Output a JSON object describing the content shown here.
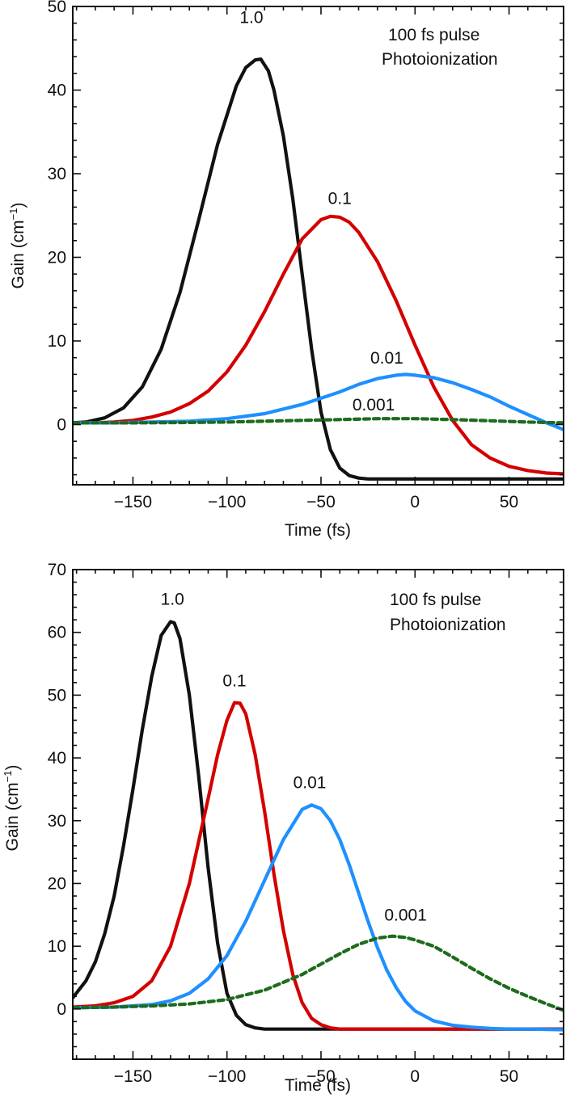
{
  "chart_data": [
    {
      "type": "line",
      "xlabel": "Time (fs)",
      "ylabel": "Gain (cm",
      "ylabel_sup": "−1",
      "ylabel_close": ")",
      "xlim": [
        -182,
        79
      ],
      "ylim": [
        -7.2,
        50
      ],
      "x_major_ticks": [
        -150,
        -100,
        -50,
        0,
        50
      ],
      "x_tick_labels": [
        "−150",
        "−100",
        "−50",
        "0",
        "50"
      ],
      "y_major_ticks": [
        0,
        10,
        20,
        30,
        40,
        50
      ],
      "y_tick_labels": [
        "0",
        "10",
        "20",
        "30",
        "40",
        "50"
      ],
      "annotations": [
        "100 fs pulse",
        "Photoionization"
      ],
      "grid": false,
      "legend": "none",
      "series": [
        {
          "label": "1.0",
          "color": "#111111",
          "dash": "solid",
          "x": [
            -182,
            -175,
            -165,
            -155,
            -145,
            -135,
            -125,
            -115,
            -105,
            -95,
            -90,
            -85,
            -82,
            -78,
            -75,
            -70,
            -65,
            -60,
            -55,
            -50,
            -45,
            -40,
            -35,
            -30,
            -25,
            -20,
            -10,
            0,
            20,
            50,
            79
          ],
          "y": [
            0.2,
            0.3,
            0.8,
            2.0,
            4.5,
            9.0,
            15.8,
            24.5,
            33.5,
            40.5,
            42.7,
            43.6,
            43.7,
            42.3,
            40.0,
            34.5,
            27.0,
            18.0,
            9.0,
            1.5,
            -3.0,
            -5.2,
            -6.1,
            -6.4,
            -6.5,
            -6.5,
            -6.5,
            -6.5,
            -6.5,
            -6.5,
            -6.5
          ]
        },
        {
          "label": "0.1",
          "color": "#d40000",
          "dash": "solid",
          "x": [
            -182,
            -170,
            -160,
            -150,
            -140,
            -130,
            -120,
            -110,
            -100,
            -90,
            -80,
            -70,
            -60,
            -50,
            -45,
            -40,
            -35,
            -30,
            -20,
            -10,
            0,
            10,
            20,
            30,
            40,
            50,
            60,
            70,
            79
          ],
          "y": [
            0.2,
            0.2,
            0.3,
            0.5,
            0.9,
            1.5,
            2.5,
            4.0,
            6.3,
            9.5,
            13.5,
            18.0,
            22.2,
            24.5,
            24.9,
            24.8,
            24.2,
            23.0,
            19.5,
            14.8,
            9.5,
            4.5,
            0.5,
            -2.4,
            -4.0,
            -5.0,
            -5.5,
            -5.8,
            -5.9
          ]
        },
        {
          "label": "0.01",
          "color": "#1e90ff",
          "dash": "solid",
          "x": [
            -182,
            -160,
            -140,
            -120,
            -100,
            -80,
            -60,
            -40,
            -30,
            -20,
            -10,
            -5,
            0,
            10,
            20,
            30,
            40,
            50,
            60,
            70,
            79
          ],
          "y": [
            0.2,
            0.2,
            0.3,
            0.4,
            0.7,
            1.3,
            2.4,
            3.9,
            4.8,
            5.5,
            5.9,
            6.0,
            5.9,
            5.6,
            5.0,
            4.2,
            3.3,
            2.2,
            1.2,
            0.2,
            -0.6
          ]
        },
        {
          "label": "0.001",
          "color": "#1e6b1e",
          "dash": "dashed",
          "x": [
            -182,
            -150,
            -120,
            -100,
            -80,
            -60,
            -40,
            -20,
            0,
            20,
            40,
            60,
            79
          ],
          "y": [
            0.2,
            0.2,
            0.25,
            0.3,
            0.4,
            0.5,
            0.6,
            0.7,
            0.7,
            0.6,
            0.45,
            0.3,
            0.2
          ]
        }
      ]
    },
    {
      "type": "line",
      "xlabel": "Time (fs)",
      "ylabel": "Gain (cm",
      "ylabel_sup": "−1",
      "ylabel_close": ")",
      "xlim": [
        -182,
        79
      ],
      "ylim": [
        -8,
        70
      ],
      "x_major_ticks": [
        -150,
        -100,
        -50,
        0,
        50
      ],
      "x_tick_labels": [
        "−150",
        "−100",
        "−50",
        "0",
        "50"
      ],
      "y_major_ticks": [
        0,
        10,
        20,
        30,
        40,
        50,
        60,
        70
      ],
      "y_tick_labels": [
        "0",
        "10",
        "20",
        "30",
        "40",
        "50",
        "60",
        "70"
      ],
      "annotations": [
        "100 fs pulse",
        "Photoionization"
      ],
      "grid": false,
      "legend": "none",
      "series": [
        {
          "label": "1.0",
          "color": "#111111",
          "dash": "solid",
          "x": [
            -182,
            -175,
            -170,
            -165,
            -160,
            -155,
            -150,
            -145,
            -140,
            -135,
            -130,
            -128,
            -125,
            -120,
            -115,
            -110,
            -105,
            -100,
            -95,
            -90,
            -85,
            -80,
            -70,
            -50,
            0,
            79
          ],
          "y": [
            1.8,
            4.5,
            7.5,
            12.0,
            18.0,
            26.0,
            35.0,
            44.5,
            53.0,
            59.5,
            61.7,
            61.5,
            59.0,
            50.0,
            37.0,
            22.5,
            10.5,
            2.5,
            -1.0,
            -2.5,
            -3.0,
            -3.2,
            -3.2,
            -3.2,
            -3.2,
            -3.2
          ]
        },
        {
          "label": "0.1",
          "color": "#d40000",
          "dash": "solid",
          "x": [
            -182,
            -170,
            -160,
            -150,
            -140,
            -130,
            -120,
            -110,
            -105,
            -100,
            -96,
            -93,
            -90,
            -85,
            -80,
            -75,
            -70,
            -65,
            -60,
            -55,
            -50,
            -45,
            -40,
            -30,
            0,
            79
          ],
          "y": [
            0.3,
            0.5,
            1.0,
            2.0,
            4.5,
            10.0,
            20.0,
            33.5,
            40.5,
            46.0,
            48.8,
            48.7,
            47.0,
            40.5,
            31.5,
            21.5,
            12.5,
            5.5,
            1.0,
            -1.5,
            -2.5,
            -3.0,
            -3.2,
            -3.2,
            -3.2,
            -3.2
          ]
        },
        {
          "label": "0.01",
          "color": "#1e90ff",
          "dash": "solid",
          "x": [
            -182,
            -160,
            -140,
            -130,
            -120,
            -110,
            -100,
            -90,
            -80,
            -70,
            -60,
            -55,
            -50,
            -45,
            -40,
            -35,
            -30,
            -25,
            -20,
            -15,
            -10,
            -5,
            0,
            10,
            20,
            30,
            40,
            50,
            60,
            79
          ],
          "y": [
            0.2,
            0.3,
            0.7,
            1.3,
            2.5,
            4.8,
            8.5,
            14.0,
            20.5,
            27.0,
            31.8,
            32.5,
            31.9,
            30.0,
            27.0,
            23.0,
            18.5,
            14.0,
            9.8,
            6.2,
            3.4,
            1.2,
            -0.3,
            -1.9,
            -2.6,
            -2.9,
            -3.1,
            -3.2,
            -3.2,
            -3.3
          ]
        },
        {
          "label": "0.001",
          "color": "#1e6b1e",
          "dash": "dashed",
          "x": [
            -182,
            -160,
            -140,
            -120,
            -100,
            -80,
            -60,
            -40,
            -30,
            -20,
            -12,
            -5,
            0,
            10,
            20,
            30,
            40,
            50,
            60,
            70,
            79
          ],
          "y": [
            0.2,
            0.3,
            0.5,
            0.8,
            1.5,
            3.0,
            5.5,
            8.8,
            10.3,
            11.3,
            11.6,
            11.4,
            11.0,
            10.0,
            8.3,
            6.5,
            4.8,
            3.3,
            2.0,
            0.8,
            -0.2
          ]
        }
      ]
    }
  ]
}
